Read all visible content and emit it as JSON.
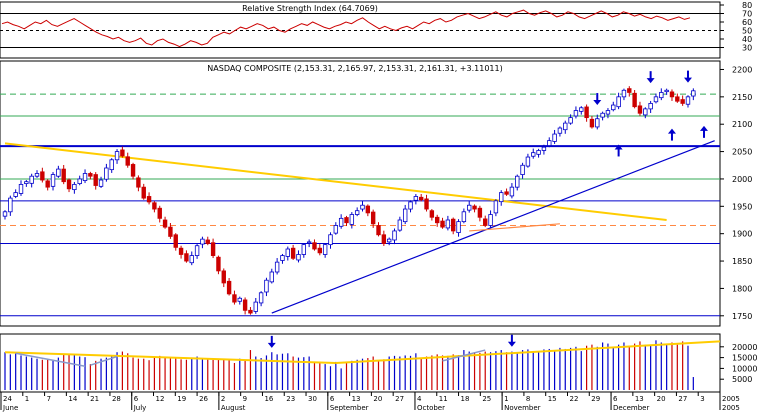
{
  "chart_data": [
    {
      "type": "line",
      "title": "Relative Strength Index (64.7069)",
      "ylim": [
        20,
        80
      ],
      "y_ticks": [
        80,
        70,
        60,
        50,
        40,
        30
      ],
      "reference_lines": [
        {
          "value": 70,
          "style": "solid"
        },
        {
          "value": 50,
          "style": "dashed"
        },
        {
          "value": 30,
          "style": "solid"
        }
      ],
      "series": [
        {
          "color": "#cc0000",
          "values": [
            58,
            60,
            57,
            55,
            52,
            56,
            60,
            58,
            62,
            57,
            55,
            58,
            61,
            64,
            60,
            56,
            52,
            48,
            45,
            43,
            40,
            42,
            38,
            36,
            38,
            41,
            35,
            33,
            38,
            40,
            36,
            34,
            31,
            34,
            38,
            36,
            33,
            35,
            42,
            45,
            48,
            46,
            50,
            54,
            52,
            55,
            58,
            56,
            52,
            54,
            50,
            48,
            52,
            55,
            58,
            56,
            60,
            57,
            54,
            52,
            55,
            57,
            60,
            58,
            62,
            65,
            60,
            56,
            52,
            55,
            52,
            50,
            53,
            55,
            52,
            56,
            60,
            58,
            62,
            64,
            60,
            62,
            66,
            68,
            70,
            67,
            64,
            66,
            69,
            72,
            68,
            66,
            70,
            72,
            74,
            70,
            68,
            71,
            73,
            70,
            66,
            68,
            72,
            70,
            66,
            64,
            67,
            70,
            73,
            70,
            66,
            68,
            72,
            70,
            67,
            69,
            66,
            64,
            67,
            65,
            62,
            64,
            66,
            63,
            65
          ]
        }
      ]
    },
    {
      "type": "candlestick",
      "title": "NASDAQ COMPOSITE (2,153.31, 2,165.97, 2,153.31, 2,161.31, +3.11011)",
      "ylim": [
        1735,
        2210
      ],
      "y_ticks": [
        2200,
        2150,
        2100,
        2050,
        2000,
        1950,
        1900,
        1850,
        1800,
        1750
      ],
      "horizontal_levels": [
        {
          "value": 2155,
          "style": "dashed",
          "color": "#33aa55"
        },
        {
          "value": 2115,
          "style": "solid",
          "color": "#33aa55"
        },
        {
          "value": 2060,
          "style": "thick",
          "color": "#0000cc"
        },
        {
          "value": 2000,
          "style": "solid",
          "color": "#33aa55"
        },
        {
          "value": 1960,
          "style": "solid",
          "color": "#0000cc"
        },
        {
          "value": 1915,
          "style": "dashed",
          "color": "#ff8844"
        },
        {
          "value": 1882,
          "style": "solid",
          "color": "#0000cc"
        },
        {
          "value": 1750,
          "style": "solid",
          "color": "#0000cc"
        }
      ],
      "trendlines": [
        {
          "color": "#ffcc00",
          "from": {
            "x": 0,
            "y": 2065
          },
          "to": {
            "x": 124,
            "y": 1925
          }
        },
        {
          "color": "#0000cc",
          "from": {
            "x": 50,
            "y": 1755
          },
          "to": {
            "x": 133,
            "y": 2070
          }
        },
        {
          "color": "#ff8844",
          "from": {
            "x": 87,
            "y": 1905
          },
          "to": {
            "x": 104,
            "y": 1918
          }
        }
      ],
      "arrows": [
        {
          "x": 111,
          "y": 2135,
          "direction": "down"
        },
        {
          "x": 115,
          "y": 2063,
          "direction": "up"
        },
        {
          "x": 121,
          "y": 2175,
          "direction": "down"
        },
        {
          "x": 125,
          "y": 2092,
          "direction": "up"
        },
        {
          "x": 128,
          "y": 2176,
          "direction": "down"
        },
        {
          "x": 131,
          "y": 2097,
          "direction": "up"
        }
      ],
      "closes": [
        1940,
        1965,
        1975,
        1990,
        1995,
        2005,
        2010,
        1998,
        1985,
        2008,
        2018,
        1995,
        1982,
        1990,
        2000,
        2010,
        2005,
        1988,
        1998,
        2020,
        2035,
        2050,
        2042,
        2025,
        2005,
        1985,
        1965,
        1958,
        1945,
        1928,
        1912,
        1895,
        1875,
        1862,
        1850,
        1860,
        1878,
        1890,
        1882,
        1860,
        1832,
        1810,
        1790,
        1775,
        1782,
        1760,
        1755,
        1775,
        1792,
        1815,
        1830,
        1848,
        1860,
        1872,
        1855,
        1862,
        1880,
        1885,
        1872,
        1865,
        1880,
        1898,
        1915,
        1928,
        1920,
        1935,
        1942,
        1952,
        1938,
        1918,
        1898,
        1882,
        1890,
        1905,
        1925,
        1945,
        1958,
        1968,
        1962,
        1945,
        1930,
        1920,
        1912,
        1925,
        1905,
        1922,
        1940,
        1952,
        1945,
        1930,
        1915,
        1935,
        1960,
        1975,
        1972,
        1985,
        2005,
        2025,
        2040,
        2048,
        2052,
        2058,
        2070,
        2082,
        2093,
        2102,
        2112,
        2125,
        2130,
        2112,
        2095,
        2110,
        2120,
        2125,
        2135,
        2150,
        2162,
        2158,
        2132,
        2120,
        2128,
        2138,
        2150,
        2158,
        2162,
        2150,
        2142,
        2138,
        2150,
        2161
      ]
    },
    {
      "type": "bar",
      "ylim": [
        0,
        25000
      ],
      "y_ticks": [
        20000,
        15000,
        10000,
        5000
      ],
      "x_ticks": [
        "24",
        "1",
        "7",
        "14",
        "21",
        "28",
        "6",
        "12",
        "19",
        "26",
        "2",
        "9",
        "16",
        "23",
        "30",
        "6",
        "13",
        "20",
        "27",
        "4",
        "11",
        "18",
        "25",
        "1",
        "8",
        "15",
        "22",
        "29",
        "6",
        "13",
        "20",
        "27",
        "3",
        "2005"
      ],
      "month_labels": [
        "June",
        "July",
        "August",
        "September",
        "October",
        "November",
        "December",
        "2005"
      ],
      "trendlines": [
        {
          "color": "#ffcc00",
          "from": {
            "x": 0,
            "y": 17500
          },
          "to": {
            "x": 62,
            "y": 12500
          }
        },
        {
          "color": "#ffcc00",
          "from": {
            "x": 62,
            "y": 12500
          },
          "to": {
            "x": 134,
            "y": 22500
          }
        },
        {
          "color": "#8899cc",
          "from": {
            "x": 2,
            "y": 17000
          },
          "to": {
            "x": 15,
            "y": 11000
          }
        },
        {
          "color": "#8899cc",
          "from": {
            "x": 16,
            "y": 11500
          },
          "to": {
            "x": 21,
            "y": 15500
          }
        },
        {
          "color": "#8899cc",
          "from": {
            "x": 82,
            "y": 13500
          },
          "to": {
            "x": 90,
            "y": 18500
          }
        }
      ],
      "arrows": [
        {
          "x": 50,
          "y": 19500,
          "direction": "down"
        },
        {
          "x": 95,
          "y": 20000,
          "direction": "down"
        }
      ],
      "values": [
        17500,
        16500,
        17000,
        16000,
        15500,
        15000,
        14500,
        14000,
        14000,
        13500,
        15000,
        16500,
        16800,
        16000,
        15500,
        15200,
        12000,
        13500,
        14500,
        15000,
        16000,
        17500,
        17800,
        17000,
        15000,
        14500,
        14500,
        13800,
        15500,
        15800,
        15200,
        15000,
        14800,
        14200,
        14000,
        15000,
        15500,
        14800,
        14500,
        14000,
        14200,
        14000,
        13800,
        12500,
        14500,
        13800,
        18500,
        15500,
        14800,
        16000,
        17500,
        16500,
        16800,
        17000,
        15500,
        15000,
        15200,
        15500,
        12500,
        13000,
        12000,
        11000,
        13000,
        10000,
        12500,
        13500,
        14000,
        14500,
        14800,
        15500,
        13800,
        14200,
        15500,
        15800,
        15500,
        16000,
        15800,
        17000,
        15000,
        15500,
        16000,
        16500,
        16000,
        15800,
        16500,
        16200,
        18500,
        17800,
        17500,
        17200,
        17800,
        17500,
        18000,
        18500,
        17500,
        17800,
        17500,
        18500,
        18800,
        17500,
        18000,
        18800,
        19000,
        18500,
        19500,
        19000,
        19500,
        20000,
        18000,
        20500,
        21000,
        20000,
        22000,
        21500,
        19500,
        21000,
        22000,
        20500,
        21500,
        22500,
        21000,
        21000,
        23000,
        22000,
        21500,
        22000,
        21000,
        22500,
        20500,
        6000
      ]
    }
  ]
}
